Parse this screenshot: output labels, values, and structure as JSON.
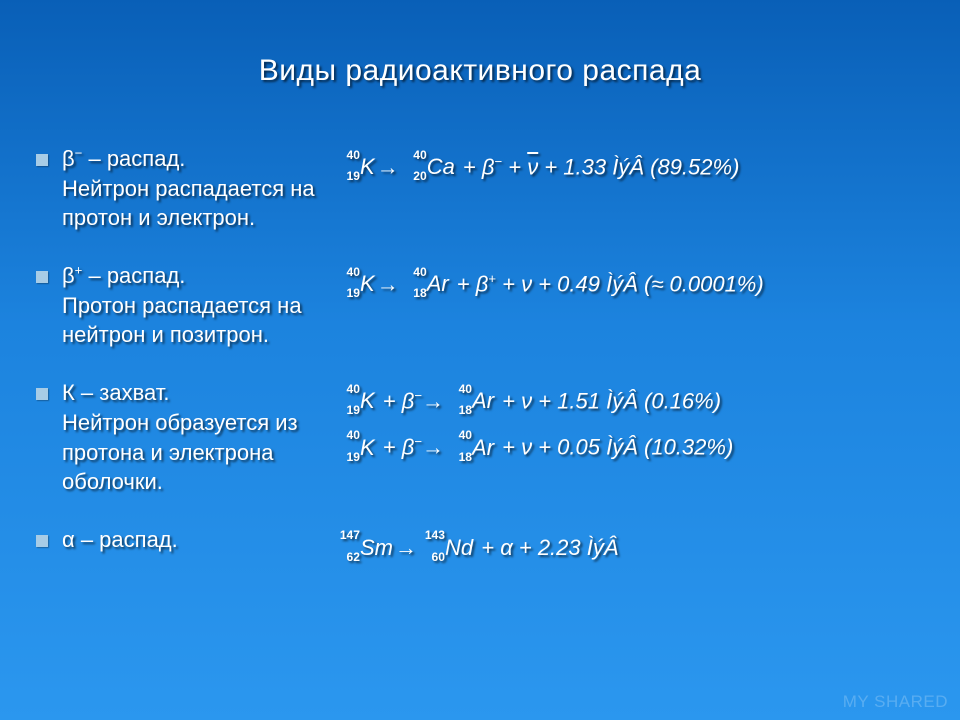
{
  "colors": {
    "bg_top": "#095fb7",
    "bg_mid": "#1c83de",
    "bg_bot": "#2b97ef",
    "text": "#ffffff",
    "bullet": "#a7cce6",
    "shadow": "rgba(0,0,0,0.6)"
  },
  "typography": {
    "title_fontsize": 30,
    "body_fontsize": 22,
    "font_family": "Arial"
  },
  "title": "Виды радиоактивного распада",
  "items": [
    {
      "label": "β⁻ – распад.\nНейтрон распадается на протон и электрон.",
      "equations": [
        {
          "lhs": {
            "mass": "40",
            "z": "19",
            "el": "K"
          },
          "arrow": "→",
          "rhs": {
            "mass": "40",
            "z": "20",
            "el": "Ca"
          },
          "tail": " + β⁻ + ν̄ + 1.33 ÌýÂ  (89.52%)",
          "energy": 1.33,
          "unit": "ÌýÂ",
          "prob": "89.52%"
        }
      ]
    },
    {
      "label": "β⁺ – распад.\nПротон распадается на нейтрон и позитрон.",
      "equations": [
        {
          "lhs": {
            "mass": "40",
            "z": "19",
            "el": "K"
          },
          "arrow": "→",
          "rhs": {
            "mass": "40",
            "z": "18",
            "el": "Ar"
          },
          "tail": " + β⁺ + ν + 0.49 ÌýÂ  (≈ 0.0001%)",
          "energy": 0.49,
          "unit": "ÌýÂ",
          "prob": "≈ 0.0001%"
        }
      ]
    },
    {
      "label": "К – захват.\nНейтрон образуется из протона и электрона оболочки.",
      "equations": [
        {
          "lhs": {
            "mass": "40",
            "z": "19",
            "el": "K"
          },
          "plus_lhs": " + β⁻",
          "arrow": "→",
          "rhs": {
            "mass": "40",
            "z": "18",
            "el": "Ar"
          },
          "tail": " + ν + 1.51 ÌýÂ  (0.16%)",
          "energy": 1.51,
          "unit": "ÌýÂ",
          "prob": "0.16%"
        },
        {
          "lhs": {
            "mass": "40",
            "z": "19",
            "el": "K"
          },
          "plus_lhs": " + β⁻",
          "arrow": "→",
          "rhs": {
            "mass": "40",
            "z": "18",
            "el": "Ar"
          },
          "tail": " + ν + 0.05 ÌýÂ  (10.32%)",
          "energy": 0.05,
          "unit": "ÌýÂ",
          "prob": "10.32%"
        }
      ]
    },
    {
      "label": "α – распад.",
      "equations": [
        {
          "lhs": {
            "mass": "147",
            "z": "62",
            "el": "Sm"
          },
          "arrow": "→",
          "rhs": {
            "mass": "143",
            "z": "60",
            "el": "Nd"
          },
          "tail": " + α + 2.23 ÌýÂ",
          "energy": 2.23,
          "unit": "ÌýÂ",
          "prob": ""
        }
      ]
    }
  ],
  "watermark": "MY SHARED"
}
